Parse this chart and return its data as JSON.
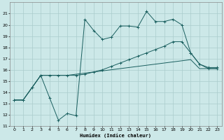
{
  "bg_color": "#cce8e8",
  "grid_color": "#aacccc",
  "line_color": "#1a5f5f",
  "xlabel": "Humidex (Indice chaleur)",
  "ylim": [
    11,
    22
  ],
  "xlim": [
    -0.5,
    23.5
  ],
  "yticks": [
    11,
    12,
    13,
    14,
    15,
    16,
    17,
    18,
    19,
    20,
    21
  ],
  "xticks": [
    0,
    1,
    2,
    3,
    4,
    5,
    6,
    7,
    8,
    9,
    10,
    11,
    12,
    13,
    14,
    15,
    16,
    17,
    18,
    19,
    20,
    21,
    22,
    23
  ],
  "s1_x": [
    0,
    1,
    2,
    3,
    4,
    5,
    6,
    7,
    8,
    9,
    10,
    11,
    12,
    13,
    14,
    15,
    16,
    17,
    18,
    19,
    20,
    21,
    22,
    23
  ],
  "s1_y": [
    13.3,
    13.3,
    14.4,
    15.5,
    13.5,
    11.5,
    12.1,
    11.9,
    20.5,
    19.5,
    18.7,
    18.9,
    19.9,
    19.9,
    19.8,
    21.2,
    20.3,
    20.3,
    20.5,
    20.0,
    17.5,
    16.5,
    16.2,
    16.2
  ],
  "s2_x": [
    0,
    1,
    2,
    3,
    4,
    5,
    6,
    7,
    8,
    9,
    10,
    11,
    12,
    13,
    14,
    15,
    16,
    17,
    18,
    19,
    20,
    21,
    22,
    23
  ],
  "s2_y": [
    13.3,
    13.3,
    14.4,
    15.5,
    15.5,
    15.5,
    15.5,
    15.5,
    15.6,
    15.8,
    16.0,
    16.3,
    16.6,
    16.9,
    17.2,
    17.5,
    17.8,
    18.1,
    18.5,
    18.5,
    17.5,
    16.5,
    16.1,
    16.1
  ],
  "s3_x": [
    0,
    1,
    2,
    3,
    4,
    5,
    6,
    7,
    8,
    9,
    10,
    11,
    12,
    13,
    14,
    15,
    16,
    17,
    18,
    19,
    20,
    21,
    22,
    23
  ],
  "s3_y": [
    13.3,
    13.3,
    14.4,
    15.5,
    15.5,
    15.5,
    15.5,
    15.6,
    15.7,
    15.8,
    15.9,
    16.0,
    16.1,
    16.2,
    16.3,
    16.4,
    16.5,
    16.6,
    16.7,
    16.8,
    16.9,
    16.1,
    16.1,
    16.1
  ]
}
